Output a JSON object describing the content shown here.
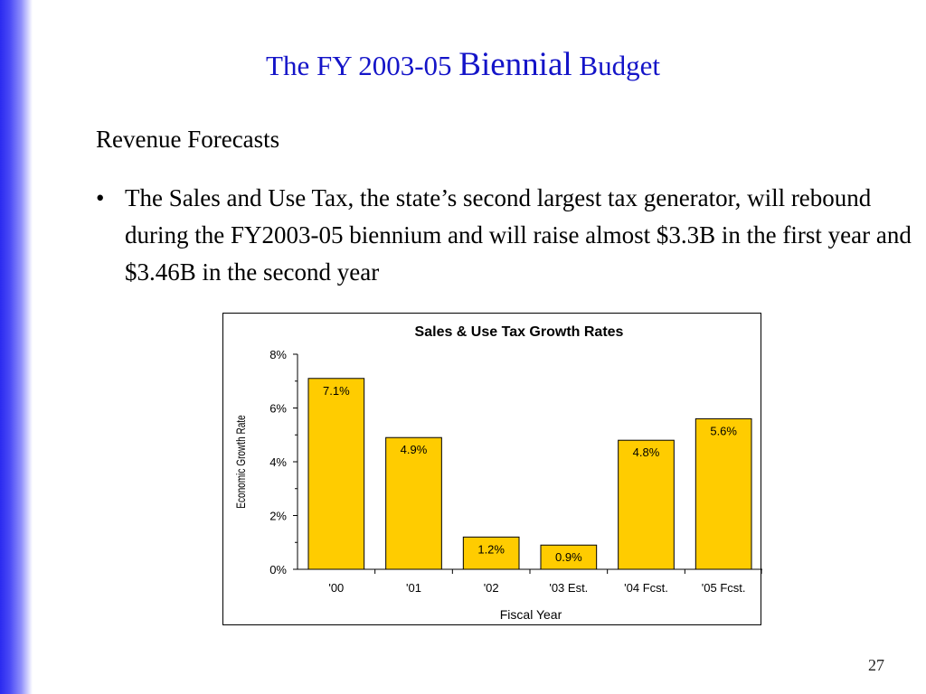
{
  "slide": {
    "title_pre": "The FY 2003-05 ",
    "title_emph": "Biennial",
    "title_post": " Budget",
    "subheading": "Revenue Forecasts",
    "bullet_symbol": "•",
    "bullet_text": "The Sales and Use Tax, the state’s second largest tax generator, will rebound during the FY2003-05 biennium and will raise almost $3.3B in the first year and $3.46B in the second year",
    "page_number": "27"
  },
  "colors": {
    "title": "#1414c8",
    "bar_fill": "#ffcc00",
    "bar_stroke": "#000000",
    "left_bar": "#2a2af0"
  },
  "chart_data": {
    "type": "bar",
    "title": "Sales & Use Tax Growth Rates",
    "xlabel": "Fiscal Year",
    "ylabel": "Economic Growth Rate",
    "categories": [
      "'00",
      "'01",
      "'02",
      "'03 Est.",
      "'04 Fcst.",
      "'05 Fcst."
    ],
    "values": [
      7.1,
      4.9,
      1.2,
      0.9,
      4.8,
      5.6
    ],
    "data_labels": [
      "7.1%",
      "4.9%",
      "1.2%",
      "0.9%",
      "4.8%",
      "5.6%"
    ],
    "ylim": [
      0,
      8
    ],
    "yticks": [
      0,
      2,
      4,
      6,
      8
    ],
    "ytick_labels": [
      "0%",
      "2%",
      "4%",
      "6%",
      "8%"
    ],
    "grid": false,
    "legend": "none"
  }
}
